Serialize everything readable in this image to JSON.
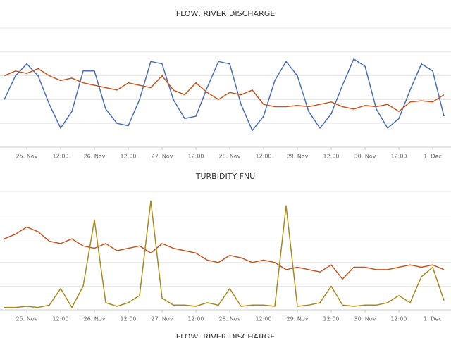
{
  "chart_data": [
    {
      "type": "line",
      "title": "FLOW, RIVER DISCHARGE",
      "x": [
        -8,
        -4,
        0,
        4,
        8,
        12,
        16,
        20,
        24,
        28,
        32,
        36,
        40,
        44,
        48,
        52,
        56,
        60,
        64,
        68,
        72,
        76,
        80,
        84,
        88,
        92,
        96,
        100,
        104,
        108,
        112,
        116,
        120,
        124,
        128,
        132,
        136,
        140,
        144,
        148
      ],
      "xlim": [
        -9.5,
        150.5
      ],
      "xticks": [
        {
          "value": 0,
          "label": "25. Nov"
        },
        {
          "value": 12,
          "label": "12:00"
        },
        {
          "value": 24,
          "label": "26. Nov"
        },
        {
          "value": 36,
          "label": "12:00"
        },
        {
          "value": 48,
          "label": "27. Nov"
        },
        {
          "value": 60,
          "label": "12:00"
        },
        {
          "value": 72,
          "label": "28. Nov"
        },
        {
          "value": 84,
          "label": "12:00"
        },
        {
          "value": 96,
          "label": "29. Nov"
        },
        {
          "value": 108,
          "label": "12:00"
        },
        {
          "value": 120,
          "label": "30. Nov"
        },
        {
          "value": 132,
          "label": "12:00"
        },
        {
          "value": 144,
          "label": "1. Dec"
        }
      ],
      "ylim": [
        0,
        5
      ],
      "yticks": [
        0,
        1,
        2,
        3,
        4,
        5
      ],
      "grid": true,
      "series": [
        {
          "color": "#4a6fb8",
          "values": [
            2.0,
            3.0,
            3.5,
            3.0,
            1.8,
            0.8,
            1.5,
            3.2,
            3.2,
            1.6,
            1.0,
            0.9,
            2.0,
            3.6,
            3.5,
            2.0,
            1.2,
            1.3,
            2.5,
            3.6,
            3.5,
            1.8,
            0.7,
            1.3,
            2.8,
            3.6,
            3.0,
            1.5,
            0.8,
            1.4,
            2.6,
            3.7,
            3.4,
            1.6,
            0.8,
            1.2,
            2.4,
            3.5,
            3.2,
            1.3
          ]
        },
        {
          "color": "#c9541f",
          "values": [
            3.0,
            3.2,
            3.1,
            3.3,
            3.0,
            2.8,
            2.9,
            2.7,
            2.6,
            2.5,
            2.4,
            2.7,
            2.6,
            2.5,
            3.0,
            2.4,
            2.2,
            2.7,
            2.3,
            2.0,
            2.3,
            2.2,
            2.4,
            1.8,
            1.7,
            1.7,
            1.75,
            1.7,
            1.8,
            1.9,
            1.7,
            1.6,
            1.75,
            1.7,
            1.8,
            1.5,
            1.9,
            1.95,
            1.9,
            2.2
          ]
        }
      ]
    },
    {
      "type": "line",
      "title": "TURBIDITY FNU",
      "x": [
        -8,
        -4,
        0,
        4,
        8,
        12,
        16,
        20,
        24,
        28,
        32,
        36,
        40,
        44,
        48,
        52,
        56,
        60,
        64,
        68,
        72,
        76,
        80,
        84,
        88,
        92,
        96,
        100,
        104,
        108,
        112,
        116,
        120,
        124,
        128,
        132,
        136,
        140,
        144,
        148
      ],
      "xlim": [
        -9.5,
        150.5
      ],
      "xticks": [
        {
          "value": 0,
          "label": "25. Nov"
        },
        {
          "value": 12,
          "label": "12:00"
        },
        {
          "value": 24,
          "label": "26. Nov"
        },
        {
          "value": 36,
          "label": "12:00"
        },
        {
          "value": 48,
          "label": "27. Nov"
        },
        {
          "value": 60,
          "label": "12:00"
        },
        {
          "value": 72,
          "label": "28. Nov"
        },
        {
          "value": 84,
          "label": "12:00"
        },
        {
          "value": 96,
          "label": "29. Nov"
        },
        {
          "value": 108,
          "label": "12:00"
        },
        {
          "value": 120,
          "label": "30. Nov"
        },
        {
          "value": 132,
          "label": "12:00"
        },
        {
          "value": 144,
          "label": "1. Dec"
        }
      ],
      "ylim": [
        0,
        5
      ],
      "yticks": [
        0,
        1,
        2,
        3,
        4,
        5
      ],
      "grid": true,
      "series": [
        {
          "color": "#c9541f",
          "values": [
            3.0,
            3.2,
            3.5,
            3.3,
            2.9,
            2.8,
            3.0,
            2.7,
            2.6,
            2.8,
            2.5,
            2.6,
            2.7,
            2.4,
            2.8,
            2.6,
            2.5,
            2.4,
            2.1,
            2.0,
            2.3,
            2.2,
            2.0,
            2.1,
            2.0,
            1.7,
            1.8,
            1.7,
            1.6,
            1.9,
            1.3,
            1.8,
            1.8,
            1.7,
            1.7,
            1.8,
            1.9,
            1.8,
            1.9,
            1.7
          ]
        },
        {
          "color": "#a8891c",
          "values": [
            0.1,
            0.1,
            0.15,
            0.1,
            0.2,
            0.9,
            0.1,
            1.0,
            3.8,
            0.3,
            0.15,
            0.3,
            0.6,
            4.6,
            0.5,
            0.2,
            0.2,
            0.15,
            0.3,
            0.2,
            0.9,
            0.15,
            0.2,
            0.2,
            0.15,
            4.4,
            0.15,
            0.2,
            0.3,
            1.0,
            0.2,
            0.15,
            0.2,
            0.2,
            0.3,
            0.6,
            0.3,
            1.4,
            1.8,
            0.4
          ]
        }
      ]
    },
    {
      "type": "line",
      "title": "FLOW, RIVER DISCHARGE"
    }
  ]
}
